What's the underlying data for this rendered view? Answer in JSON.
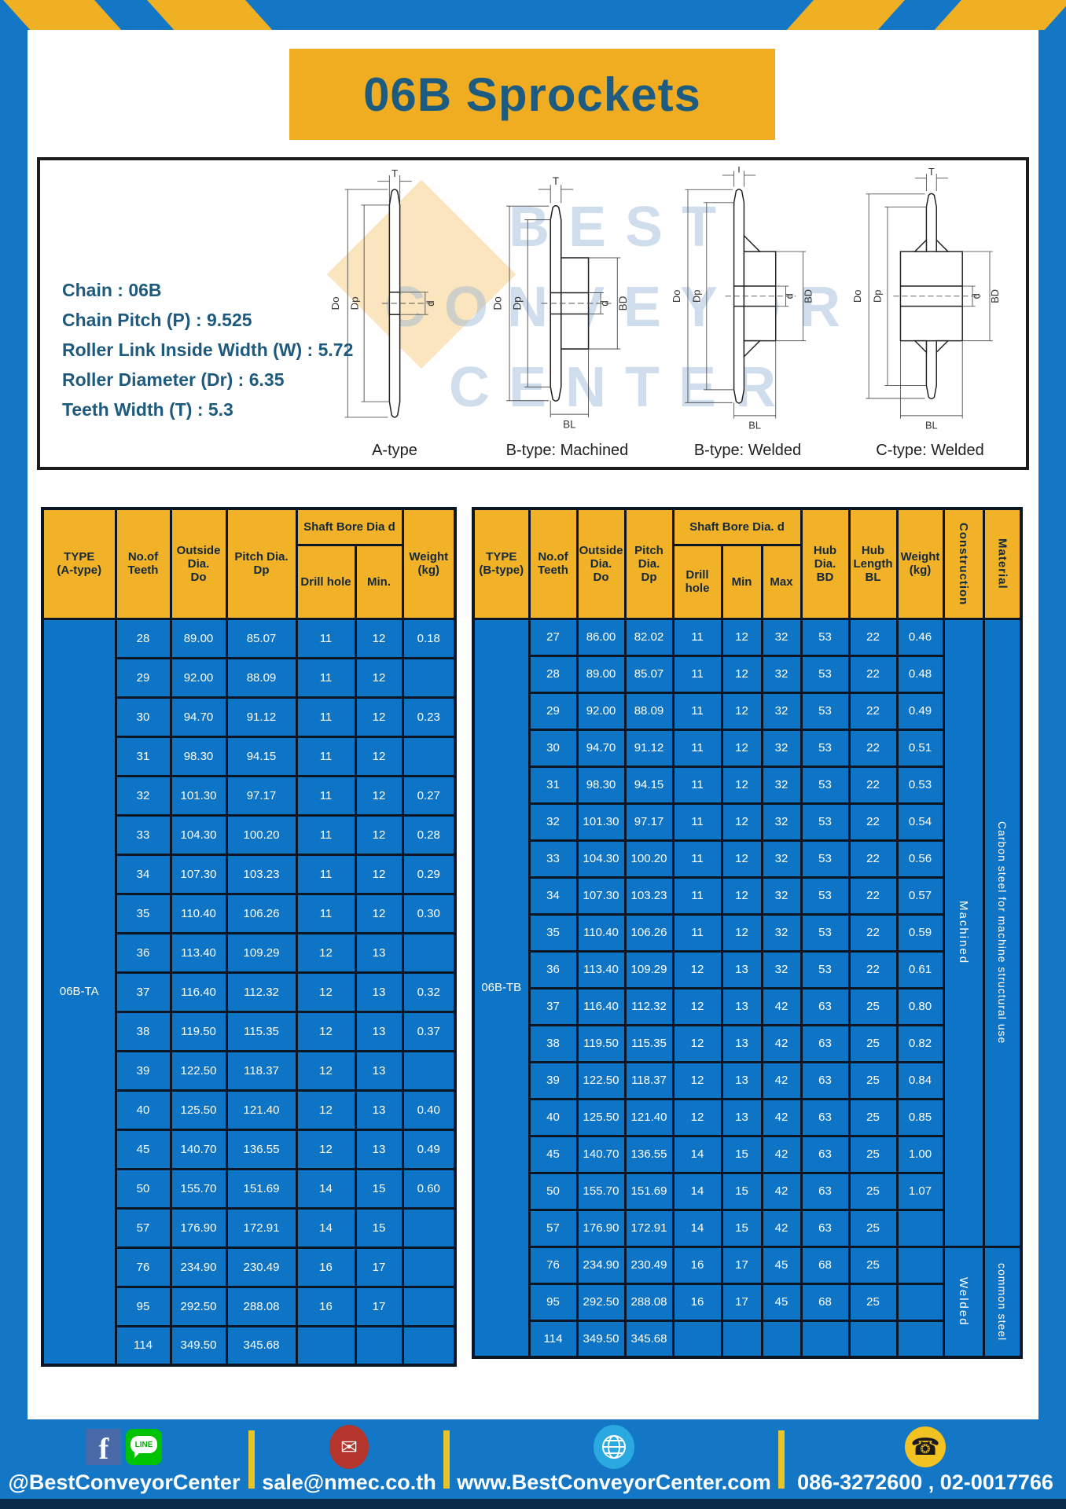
{
  "page": {
    "title": "06B Sprockets"
  },
  "specs": [
    "Chain  : 06B",
    "Chain Pitch (P)  :  9.525",
    "Roller Link Inside Width (W)  :  5.72",
    "Roller Diameter (Dr)  : 6.35",
    "Teeth Width (T)  :  5.3"
  ],
  "drawings": {
    "watermark_lines": [
      "BEST",
      "CONVEYOR",
      "CENTER"
    ],
    "captions": [
      "A-type",
      "B-type: Machined",
      "B-type: Welded",
      "C-type: Welded"
    ],
    "labels": {
      "t": "T",
      "outside": "Do",
      "pitch": "Dp",
      "bore": "d",
      "hub_dia": "BD",
      "hub_len": "BL"
    }
  },
  "table_a": {
    "header": {
      "type": "TYPE\n(A-type)",
      "teeth": "No.of\nTeeth",
      "outside": "Outside\nDia.\nDo",
      "pitch": "Pitch Dia.\nDp",
      "bore_group": "Shaft Bore Dia d",
      "drill": "Drill hole",
      "min": "Min.",
      "weight": "Weight\n(kg)"
    },
    "type_label": "06B-TA",
    "rows": [
      [
        "28",
        "89.00",
        "85.07",
        "11",
        "12",
        "0.18"
      ],
      [
        "29",
        "92.00",
        "88.09",
        "11",
        "12",
        ""
      ],
      [
        "30",
        "94.70",
        "91.12",
        "11",
        "12",
        "0.23"
      ],
      [
        "31",
        "98.30",
        "94.15",
        "11",
        "12",
        ""
      ],
      [
        "32",
        "101.30",
        "97.17",
        "11",
        "12",
        "0.27"
      ],
      [
        "33",
        "104.30",
        "100.20",
        "11",
        "12",
        "0.28"
      ],
      [
        "34",
        "107.30",
        "103.23",
        "11",
        "12",
        "0.29"
      ],
      [
        "35",
        "110.40",
        "106.26",
        "11",
        "12",
        "0.30"
      ],
      [
        "36",
        "113.40",
        "109.29",
        "12",
        "13",
        ""
      ],
      [
        "37",
        "116.40",
        "112.32",
        "12",
        "13",
        "0.32"
      ],
      [
        "38",
        "119.50",
        "115.35",
        "12",
        "13",
        "0.37"
      ],
      [
        "39",
        "122.50",
        "118.37",
        "12",
        "13",
        ""
      ],
      [
        "40",
        "125.50",
        "121.40",
        "12",
        "13",
        "0.40"
      ],
      [
        "45",
        "140.70",
        "136.55",
        "12",
        "13",
        "0.49"
      ],
      [
        "50",
        "155.70",
        "151.69",
        "14",
        "15",
        "0.60"
      ],
      [
        "57",
        "176.90",
        "172.91",
        "14",
        "15",
        ""
      ],
      [
        "76",
        "234.90",
        "230.49",
        "16",
        "17",
        ""
      ],
      [
        "95",
        "292.50",
        "288.08",
        "16",
        "17",
        ""
      ],
      [
        "114",
        "349.50",
        "345.68",
        "",
        "",
        ""
      ]
    ]
  },
  "table_b": {
    "header": {
      "type": "TYPE\n(B-type)",
      "teeth": "No.of\nTeeth",
      "outside": "Outside\nDia.\nDo",
      "pitch": "Pitch\nDia.\nDp",
      "bore_group": "Shaft Bore Dia. d",
      "drill": "Drill hole",
      "min": "Min",
      "max": "Max",
      "hub_dia": "Hub\nDia.\nBD",
      "hub_len": "Hub\nLength\nBL",
      "weight": "Weight\n(kg)",
      "construction": "Construction",
      "material": "Material"
    },
    "type_label": "06B-TB",
    "rows": [
      [
        "27",
        "86.00",
        "82.02",
        "11",
        "12",
        "32",
        "53",
        "22",
        "0.46"
      ],
      [
        "28",
        "89.00",
        "85.07",
        "11",
        "12",
        "32",
        "53",
        "22",
        "0.48"
      ],
      [
        "29",
        "92.00",
        "88.09",
        "11",
        "12",
        "32",
        "53",
        "22",
        "0.49"
      ],
      [
        "30",
        "94.70",
        "91.12",
        "11",
        "12",
        "32",
        "53",
        "22",
        "0.51"
      ],
      [
        "31",
        "98.30",
        "94.15",
        "11",
        "12",
        "32",
        "53",
        "22",
        "0.53"
      ],
      [
        "32",
        "101.30",
        "97.17",
        "11",
        "12",
        "32",
        "53",
        "22",
        "0.54"
      ],
      [
        "33",
        "104.30",
        "100.20",
        "11",
        "12",
        "32",
        "53",
        "22",
        "0.56"
      ],
      [
        "34",
        "107.30",
        "103.23",
        "11",
        "12",
        "32",
        "53",
        "22",
        "0.57"
      ],
      [
        "35",
        "110.40",
        "106.26",
        "11",
        "12",
        "32",
        "53",
        "22",
        "0.59"
      ],
      [
        "36",
        "113.40",
        "109.29",
        "12",
        "13",
        "32",
        "53",
        "22",
        "0.61"
      ],
      [
        "37",
        "116.40",
        "112.32",
        "12",
        "13",
        "42",
        "63",
        "25",
        "0.80"
      ],
      [
        "38",
        "119.50",
        "115.35",
        "12",
        "13",
        "42",
        "63",
        "25",
        "0.82"
      ],
      [
        "39",
        "122.50",
        "118.37",
        "12",
        "13",
        "42",
        "63",
        "25",
        "0.84"
      ],
      [
        "40",
        "125.50",
        "121.40",
        "12",
        "13",
        "42",
        "63",
        "25",
        "0.85"
      ],
      [
        "45",
        "140.70",
        "136.55",
        "14",
        "15",
        "42",
        "63",
        "25",
        "1.00"
      ],
      [
        "50",
        "155.70",
        "151.69",
        "14",
        "15",
        "42",
        "63",
        "25",
        "1.07"
      ],
      [
        "57",
        "176.90",
        "172.91",
        "14",
        "15",
        "42",
        "63",
        "25",
        ""
      ],
      [
        "76",
        "234.90",
        "230.49",
        "16",
        "17",
        "45",
        "68",
        "25",
        ""
      ],
      [
        "95",
        "292.50",
        "288.08",
        "16",
        "17",
        "45",
        "68",
        "25",
        ""
      ],
      [
        "114",
        "349.50",
        "345.68",
        "",
        "",
        "",
        "",
        "",
        ""
      ]
    ],
    "construction_groups": [
      {
        "label": "Machined",
        "span": 17
      },
      {
        "label": "Welded",
        "span": 3
      }
    ],
    "material_groups": [
      {
        "label": "Carbon steel for machine structural use",
        "span": 17
      },
      {
        "label": "common steel",
        "span": 3
      }
    ]
  },
  "footer": {
    "facebook_letter": "f",
    "line_icon_text": "LINE",
    "mail_glyph": "✉",
    "phone_glyph": "☎",
    "segments": [
      {
        "label": "@BestConveyorCenter"
      },
      {
        "label": "sale@nmec.co.th"
      },
      {
        "label": "www.BestConveyorCenter.com"
      },
      {
        "label": "086-3272600 , 02-0017766"
      }
    ]
  },
  "colors": {
    "frame_blue": "#1377c5",
    "cell_blue": "#0e74c6",
    "header_yellow": "#f1b227",
    "title_yellow": "#f0ad22",
    "title_text": "#1d5c80",
    "border_dark": "#0c1524",
    "stripe_yellow": "#f0b024",
    "footer_dark_strip": "#0a2b4a"
  }
}
